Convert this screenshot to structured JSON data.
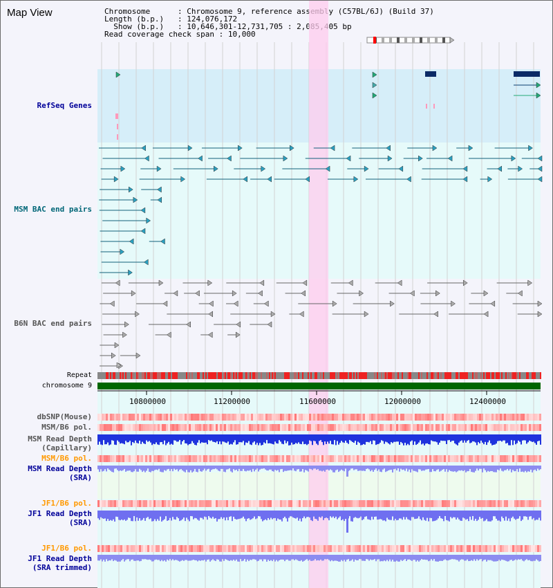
{
  "page": {
    "title": "Map View"
  },
  "info": {
    "chromosome_label": "Chromosome",
    "chromosome_value": "Chromosome 9, reference assembly (C57BL/6J) (Build 37)",
    "length_label": "Length (b.p.)",
    "length_value": "124,076,172",
    "show_label": "Show (b.p.)",
    "show_value": "10,646,301-12,731,705 : 2,085,405 bp",
    "coverage_label": "Read coverage check span",
    "coverage_value": "10,000"
  },
  "tracks": {
    "refseq": "RefSeq Genes",
    "msm_bac": "MSM BAC end pairs",
    "b6n_bac": "B6N BAC end pairs",
    "repeat": "Repeat",
    "chromosome": "chromosome 9",
    "dbsnp": "dbSNP(Mouse)",
    "msm_b6_pol_1": "MSM/B6 pol.",
    "msm_read_depth_cap_1": "MSM Read Depth",
    "msm_read_depth_cap_2": "(Capillary)",
    "msm_b6_pol_2": "MSM/B6 pol.",
    "msm_read_depth_sra_1": "MSM Read Depth",
    "msm_read_depth_sra_2": "(SRA)",
    "jf1_b6_pol_1": "JF1/B6 pol.",
    "jf1_read_depth_sra_1": "JF1 Read Depth",
    "jf1_read_depth_sra_2": "(SRA)",
    "jf1_b6_pol_2": "JF1/B6 pol.",
    "jf1_read_depth_trim_1": "JF1 Read Depth",
    "jf1_read_depth_trim_2": "(SRA trimmed)"
  },
  "axis": {
    "ticks": [
      "10800000",
      "11200000",
      "11600000",
      "12000000",
      "12400000"
    ]
  },
  "colors": {
    "refseq_label": "#000099",
    "msm_bac_label": "#006677",
    "b6n_bac_label": "#555555",
    "pol_orange": "#ff9900",
    "depth_blue": "#000099",
    "highlight": "#ffccee",
    "chromosome_green": "#006600"
  }
}
